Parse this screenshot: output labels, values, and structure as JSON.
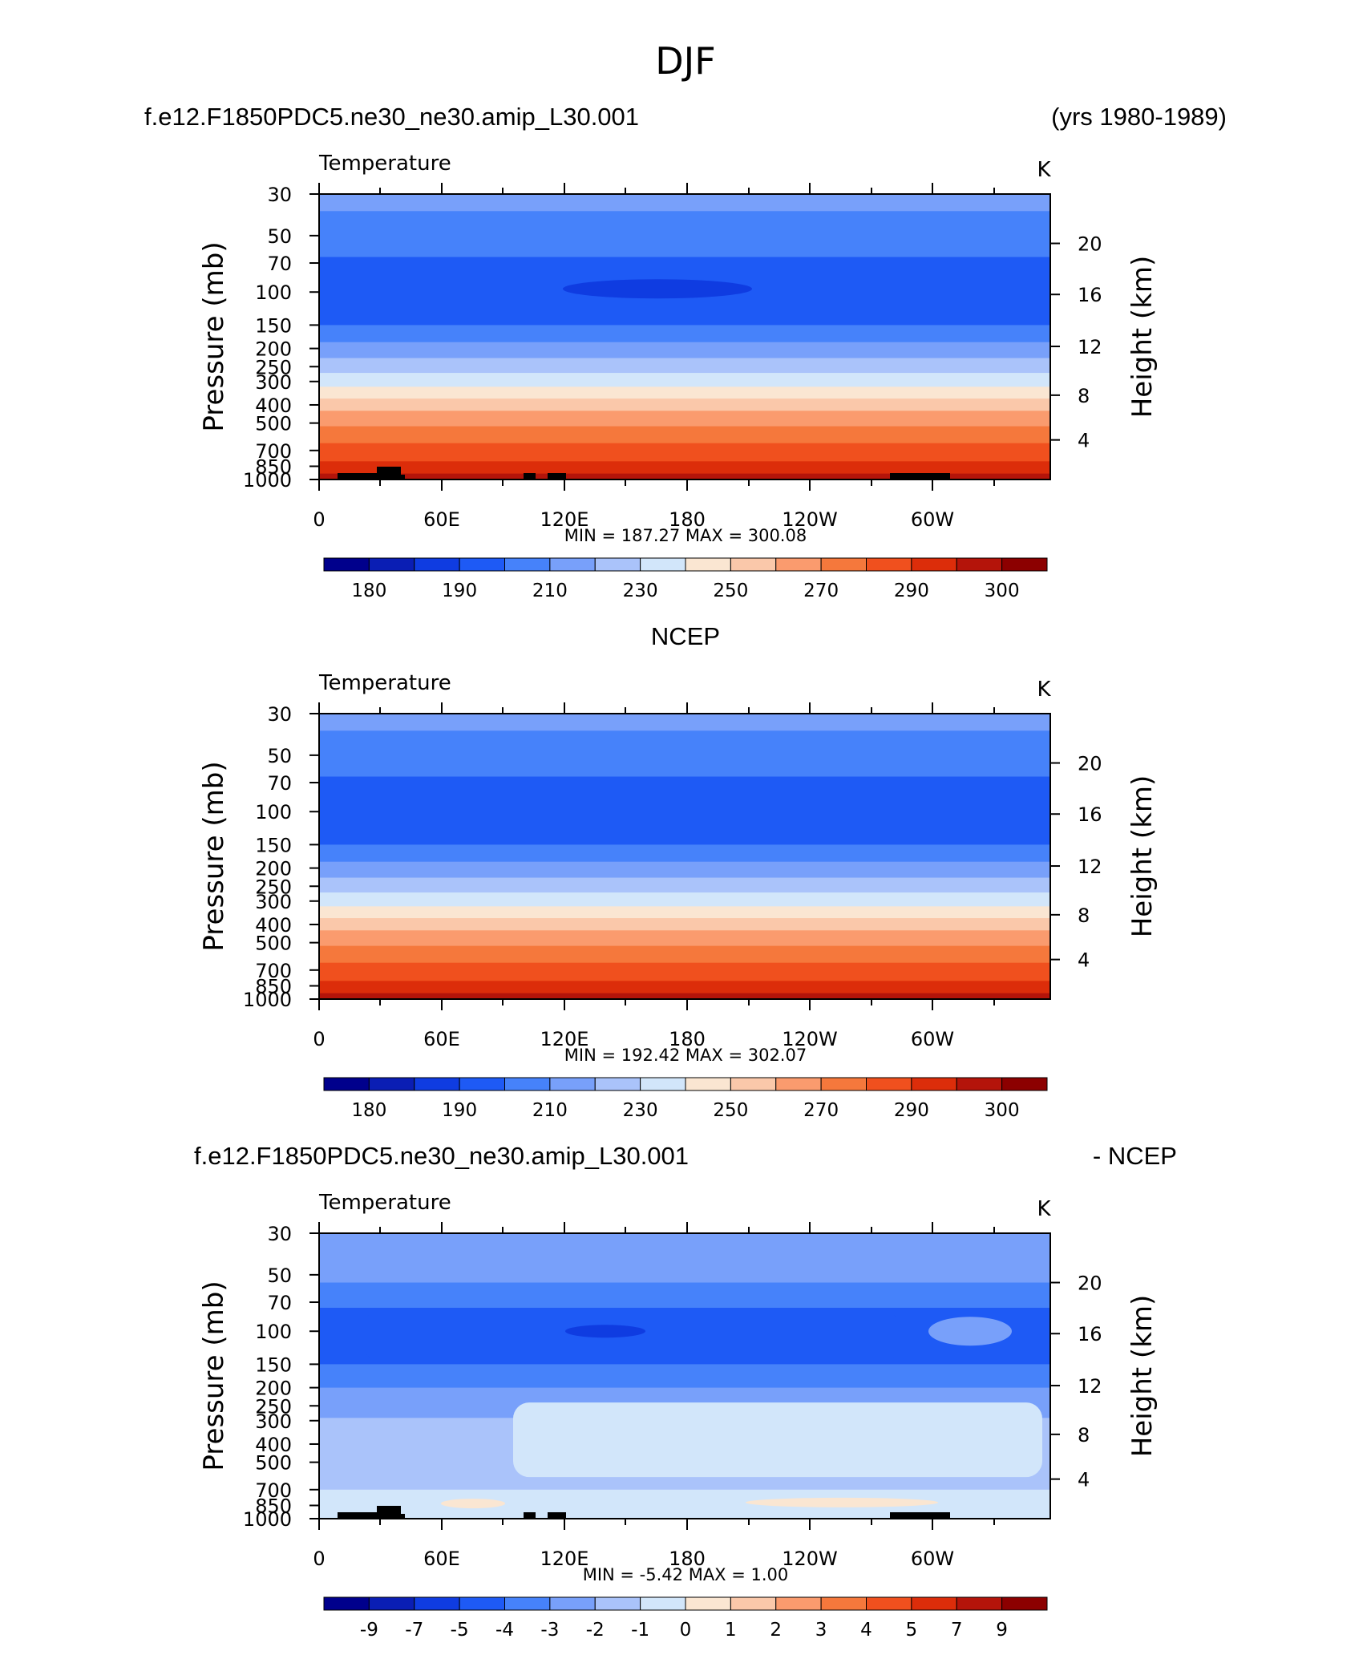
{
  "page_title": "DJF",
  "panels": [
    {
      "header_left": "f.e12.F1850PDC5.ne30_ne30.amip_L30.001",
      "header_right": "(yrs 1980-1989)",
      "var_label": "Temperature",
      "unit_label": "K",
      "minmax": "MIN =  187.27   MAX =  300.08",
      "colorbar_labels": [
        "180",
        "190",
        "210",
        "230",
        "250",
        "270",
        "290",
        "300"
      ],
      "fill_kind": "model"
    },
    {
      "header_left": "",
      "header_center": "NCEP",
      "header_right": "",
      "var_label": "Temperature",
      "unit_label": "K",
      "minmax": "MIN =  192.42   MAX =  302.07",
      "colorbar_labels": [
        "180",
        "190",
        "210",
        "230",
        "250",
        "270",
        "290",
        "300"
      ],
      "fill_kind": "obs"
    },
    {
      "header_left": "f.e12.F1850PDC5.ne30_ne30.amip_L30.001",
      "header_right": "- NCEP",
      "var_label": "Temperature",
      "unit_label": "K",
      "minmax": "MIN =    -5.42   MAX =     1.00",
      "colorbar_labels": [
        "-9",
        "-7",
        "-5",
        "-4",
        "-3",
        "-2",
        "-1",
        "0",
        "1",
        "2",
        "3",
        "4",
        "5",
        "7",
        "9"
      ],
      "fill_kind": "diff"
    }
  ],
  "axes": {
    "y_left_title": "Pressure  (mb)",
    "y_right_title": "Height  (km)",
    "x_ticks": [
      "0",
      "60E",
      "120E",
      "180",
      "120W",
      "60W"
    ],
    "y_ticks": [
      "30",
      "50",
      "70",
      "100",
      "150",
      "200",
      "250",
      "300",
      "400",
      "500",
      "700",
      "850",
      "1000"
    ],
    "y2_ticks": [
      "20",
      "16",
      "12",
      "8",
      "4"
    ]
  },
  "colors": {
    "temp_palette": [
      "#00008c",
      "#0a1eb4",
      "#0f3ce1",
      "#1e5af5",
      "#4682fa",
      "#78a0fa",
      "#aac3fa",
      "#d2e6fa",
      "#fae6d2",
      "#fac8aa",
      "#fa9b6e",
      "#f5783c",
      "#f0501e",
      "#dc2d0a",
      "#b4140a",
      "#8c0000"
    ],
    "terrain": "#000000"
  },
  "chart_data": [
    {
      "type": "heatmap",
      "title": "DJF",
      "subtitle": "f.e12.F1850PDC5.ne30_ne30.amip_L30.001",
      "xlabel": "",
      "ylabel": "Pressure  (mb)",
      "y2label": "Height  (km)",
      "variable": "Temperature",
      "units": "K",
      "x": [
        "0",
        "60E",
        "120E",
        "180",
        "120W",
        "60W"
      ],
      "y_pressure_mb": [
        30,
        50,
        70,
        100,
        150,
        200,
        250,
        300,
        400,
        500,
        700,
        850,
        1000
      ],
      "ylim": [
        1000,
        30
      ],
      "y_scale": "log",
      "levels": [
        180,
        185,
        190,
        200,
        210,
        220,
        230,
        240,
        250,
        260,
        270,
        280,
        290,
        295,
        300
      ],
      "min": 187.27,
      "max": 300.08,
      "zonal_profile_K": [
        208,
        206,
        199,
        194,
        203,
        214,
        226,
        236,
        250,
        258,
        268,
        280,
        288
      ],
      "legend": "bottom"
    },
    {
      "type": "heatmap",
      "title": "NCEP",
      "xlabel": "",
      "ylabel": "Pressure  (mb)",
      "y2label": "Height  (km)",
      "variable": "Temperature",
      "units": "K",
      "x": [
        "0",
        "60E",
        "120E",
        "180",
        "120W",
        "60W"
      ],
      "y_pressure_mb": [
        30,
        50,
        70,
        100,
        150,
        200,
        250,
        300,
        400,
        500,
        700,
        850,
        1000
      ],
      "ylim": [
        1000,
        30
      ],
      "y_scale": "log",
      "levels": [
        180,
        185,
        190,
        200,
        210,
        220,
        230,
        240,
        250,
        260,
        270,
        280,
        290,
        295,
        300
      ],
      "min": 192.42,
      "max": 302.07,
      "zonal_profile_K": [
        209,
        207,
        200,
        197,
        205,
        216,
        228,
        238,
        252,
        260,
        270,
        282,
        292
      ],
      "legend": "bottom"
    },
    {
      "type": "heatmap",
      "title": "f.e12.F1850PDC5.ne30_ne30.amip_L30.001 - NCEP",
      "xlabel": "",
      "ylabel": "Pressure  (mb)",
      "y2label": "Height  (km)",
      "variable": "Temperature",
      "units": "K",
      "x": [
        "0",
        "60E",
        "120E",
        "180",
        "120W",
        "60W"
      ],
      "y_pressure_mb": [
        30,
        50,
        70,
        100,
        150,
        200,
        250,
        300,
        400,
        500,
        700,
        850,
        1000
      ],
      "ylim": [
        1000,
        30
      ],
      "y_scale": "log",
      "levels": [
        -9,
        -7,
        -5,
        -4,
        -3,
        -2,
        -1,
        0,
        1,
        2,
        3,
        4,
        5,
        7,
        9
      ],
      "min": -5.42,
      "max": 1.0,
      "zonal_profile_K": [
        -1.5,
        -2.5,
        -3.5,
        -4.5,
        -3,
        -2.5,
        -1.5,
        -1,
        -0.5,
        -0.5,
        -0.3,
        0,
        0.2
      ],
      "legend": "bottom"
    }
  ]
}
